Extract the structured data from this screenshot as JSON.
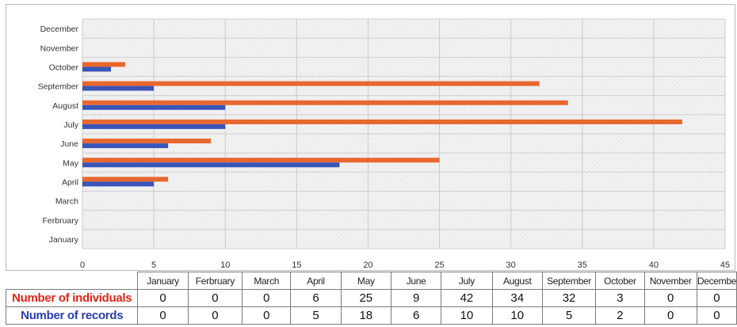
{
  "chart_data": {
    "type": "bar",
    "orientation": "horizontal",
    "categories": [
      "January",
      "Ferbruary",
      "March",
      "April",
      "May",
      "June",
      "July",
      "August",
      "September",
      "October",
      "November",
      "December"
    ],
    "series": [
      {
        "name": "Number of individuals",
        "color": "#e8672e",
        "values": [
          0,
          0,
          0,
          6,
          25,
          9,
          42,
          34,
          32,
          3,
          0,
          0
        ]
      },
      {
        "name": "Number of records",
        "color": "#3a55b8",
        "values": [
          0,
          0,
          0,
          5,
          18,
          6,
          10,
          10,
          5,
          2,
          0,
          0
        ]
      }
    ],
    "xlim": [
      0,
      45
    ],
    "xticks": [
      0,
      5,
      10,
      15,
      20,
      25,
      30,
      35,
      40,
      45
    ],
    "grid": true,
    "legend": "none"
  },
  "table": {
    "headers": [
      "January",
      "Ferbruary",
      "March",
      "April",
      "May",
      "June",
      "July",
      "August",
      "September",
      "October",
      "November",
      "December"
    ],
    "rows": [
      {
        "label": "Number of individuals",
        "label_color": "#d9261c",
        "values": [
          "0",
          "0",
          "0",
          "6",
          "25",
          "9",
          "42",
          "34",
          "32",
          "3",
          "0",
          "0"
        ]
      },
      {
        "label": "Number of records",
        "label_color": "#2b3fa8",
        "values": [
          "0",
          "0",
          "0",
          "5",
          "18",
          "6",
          "10",
          "10",
          "5",
          "2",
          "0",
          "0"
        ]
      }
    ]
  }
}
